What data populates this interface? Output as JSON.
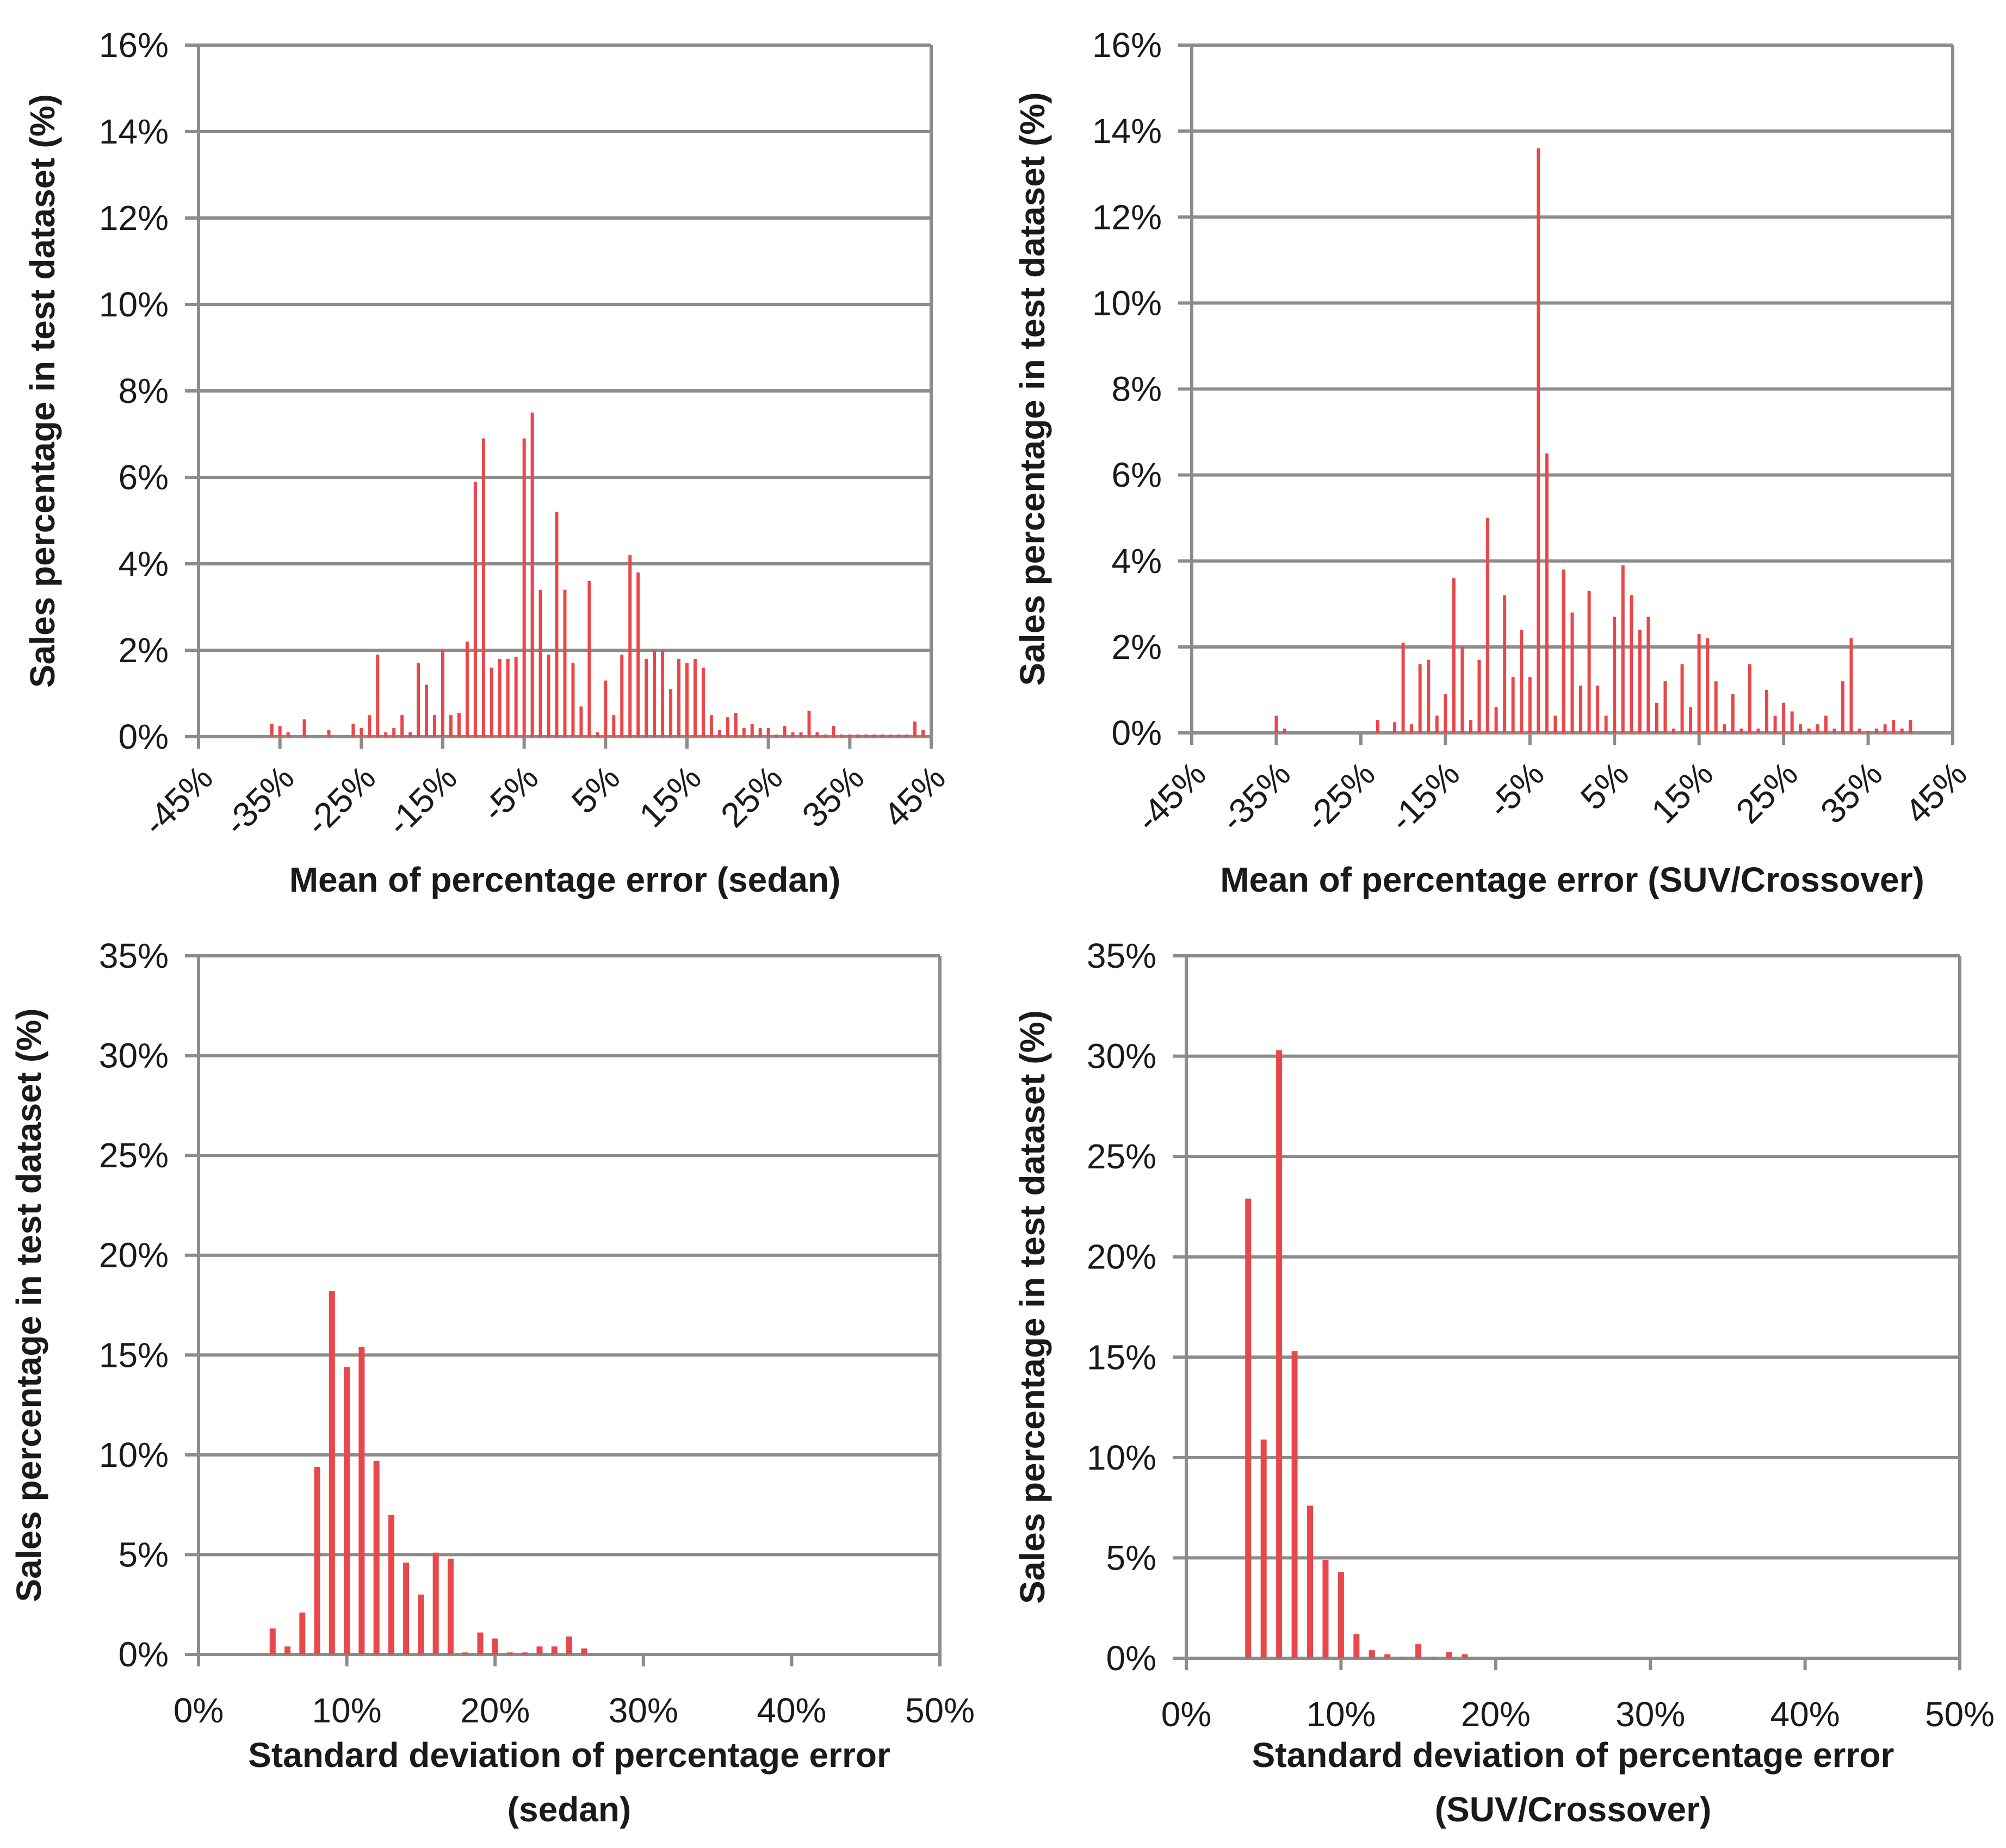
{
  "colors": {
    "bar": "#e8484a",
    "grid": "#8c8c8c",
    "axis": "#8c8c8c",
    "text": "#1a1a1a"
  },
  "chart_data": [
    {
      "type": "bar",
      "xlabel": "Mean of percentage error (sedan)",
      "ylabel": "Sales percentage in test dataset (%)",
      "xlim": [
        -45,
        45
      ],
      "ylim": [
        0,
        16
      ],
      "x_ticks": [
        "-45%",
        "-35%",
        "-25%",
        "-15%",
        "-5%",
        "5%",
        "15%",
        "25%",
        "35%",
        "45%"
      ],
      "y_ticks": [
        "0%",
        "2%",
        "4%",
        "6%",
        "8%",
        "10%",
        "12%",
        "14%",
        "16%"
      ],
      "x": [
        -36,
        -35,
        -34,
        -32,
        -29,
        -26,
        -25,
        -24,
        -23,
        -22,
        -21,
        -20,
        -19,
        -18,
        -17,
        -16,
        -15,
        -14,
        -13,
        -12,
        -11,
        -10,
        -9,
        -8,
        -7,
        -6,
        -5,
        -4,
        -3,
        -2,
        -1,
        0,
        1,
        2,
        3,
        4,
        5,
        6,
        7,
        8,
        9,
        10,
        11,
        12,
        13,
        14,
        15,
        16,
        17,
        18,
        19,
        20,
        21,
        22,
        23,
        24,
        25,
        26,
        27,
        28,
        29,
        30,
        31,
        32,
        33,
        34,
        35,
        36,
        37,
        38,
        39,
        40,
        41,
        42,
        43,
        44
      ],
      "values": [
        0.3,
        0.25,
        0.1,
        0.4,
        0.15,
        0.3,
        0.2,
        0.5,
        1.9,
        0.1,
        0.2,
        0.5,
        0.1,
        1.7,
        1.2,
        0.5,
        2.0,
        0.5,
        0.55,
        2.2,
        5.9,
        6.9,
        1.6,
        1.8,
        1.8,
        1.85,
        6.9,
        7.5,
        3.4,
        1.9,
        5.2,
        3.4,
        1.7,
        0.7,
        3.6,
        0.1,
        1.3,
        0.5,
        1.9,
        4.2,
        3.8,
        1.8,
        2.0,
        2.0,
        1.1,
        1.8,
        1.7,
        1.8,
        1.6,
        0.5,
        0.15,
        0.45,
        0.55,
        0.2,
        0.3,
        0.2,
        0.2,
        0.05,
        0.25,
        0.1,
        0.1,
        0.6,
        0.1,
        0.05,
        0.25,
        0.05,
        0.05,
        0.05,
        0.05,
        0.05,
        0.05,
        0.05,
        0.05,
        0.05,
        0.35,
        0.15
      ]
    },
    {
      "type": "bar",
      "xlabel": "Mean of percentage error (SUV/Crossover)",
      "ylabel": "Sales percentage in test dataset (%)",
      "xlim": [
        -45,
        45
      ],
      "ylim": [
        0,
        16
      ],
      "x_ticks": [
        "-45%",
        "-35%",
        "-25%",
        "-15%",
        "-5%",
        "5%",
        "15%",
        "25%",
        "35%",
        "45%"
      ],
      "y_ticks": [
        "0%",
        "2%",
        "4%",
        "6%",
        "8%",
        "10%",
        "12%",
        "14%",
        "16%"
      ],
      "x": [
        -35,
        -34,
        -23,
        -21,
        -20,
        -19,
        -18,
        -17,
        -16,
        -15,
        -14,
        -13,
        -12,
        -11,
        -10,
        -9,
        -8,
        -7,
        -6,
        -5,
        -4,
        -3,
        -2,
        -1,
        0,
        1,
        2,
        3,
        4,
        5,
        6,
        7,
        8,
        9,
        10,
        11,
        12,
        13,
        14,
        15,
        16,
        17,
        18,
        19,
        20,
        21,
        22,
        23,
        24,
        25,
        26,
        27,
        28,
        29,
        30,
        31,
        32,
        33,
        34,
        35,
        36,
        37,
        38,
        39,
        40
      ],
      "values": [
        0.4,
        0.1,
        0.3,
        0.25,
        2.1,
        0.2,
        1.6,
        1.7,
        0.4,
        0.9,
        3.6,
        2.0,
        0.3,
        1.7,
        5.0,
        0.6,
        3.2,
        1.3,
        2.4,
        1.3,
        13.6,
        6.5,
        0.4,
        3.8,
        2.8,
        1.1,
        3.3,
        1.1,
        0.4,
        2.7,
        3.9,
        3.2,
        2.4,
        2.7,
        0.7,
        1.2,
        0.1,
        1.6,
        0.6,
        2.3,
        2.2,
        1.2,
        0.2,
        0.9,
        0.1,
        1.6,
        0.1,
        1.0,
        0.4,
        0.7,
        0.5,
        0.2,
        0.1,
        0.2,
        0.4,
        0.1,
        1.2,
        2.2,
        0.1,
        0.05,
        0.1,
        0.2,
        0.3,
        0.1,
        0.3
      ]
    },
    {
      "type": "bar",
      "xlabel": "Standard deviation of percentage error",
      "xlabel2": "(sedan)",
      "ylabel": "Sales percentage in test dataset (%)",
      "xlim": [
        0,
        50
      ],
      "ylim": [
        0,
        35
      ],
      "x_ticks": [
        "0%",
        "10%",
        "20%",
        "30%",
        "40%",
        "50%"
      ],
      "y_ticks": [
        "0%",
        "5%",
        "10%",
        "15%",
        "20%",
        "25%",
        "30%",
        "35%"
      ],
      "x": [
        5,
        6,
        7,
        8,
        9,
        10,
        11,
        12,
        13,
        14,
        15,
        16,
        17,
        18,
        19,
        20,
        21,
        22,
        23,
        24,
        25,
        26
      ],
      "values": [
        1.3,
        0.4,
        2.1,
        9.4,
        18.2,
        14.4,
        15.4,
        9.7,
        7.0,
        4.6,
        3.0,
        5.1,
        4.8,
        0.1,
        1.1,
        0.8,
        0.1,
        0.1,
        0.4,
        0.4,
        0.9,
        0.3
      ]
    },
    {
      "type": "bar",
      "xlabel": "Standard deviation of percentage error",
      "xlabel2": "(SUV/Crossover)",
      "ylabel": "Sales percentage in test dataset (%)",
      "xlim": [
        0,
        50
      ],
      "ylim": [
        0,
        35
      ],
      "x_ticks": [
        "0%",
        "10%",
        "20%",
        "30%",
        "40%",
        "50%"
      ],
      "y_ticks": [
        "0%",
        "5%",
        "10%",
        "15%",
        "20%",
        "25%",
        "30%",
        "35%"
      ],
      "x": [
        4,
        5,
        6,
        7,
        8,
        9,
        10,
        11,
        12,
        13,
        14,
        15,
        16,
        17,
        18
      ],
      "values": [
        22.9,
        10.9,
        30.3,
        15.3,
        7.6,
        4.9,
        4.3,
        1.2,
        0.4,
        0.2,
        0.05,
        0.7,
        0.05,
        0.3,
        0.2
      ]
    }
  ]
}
